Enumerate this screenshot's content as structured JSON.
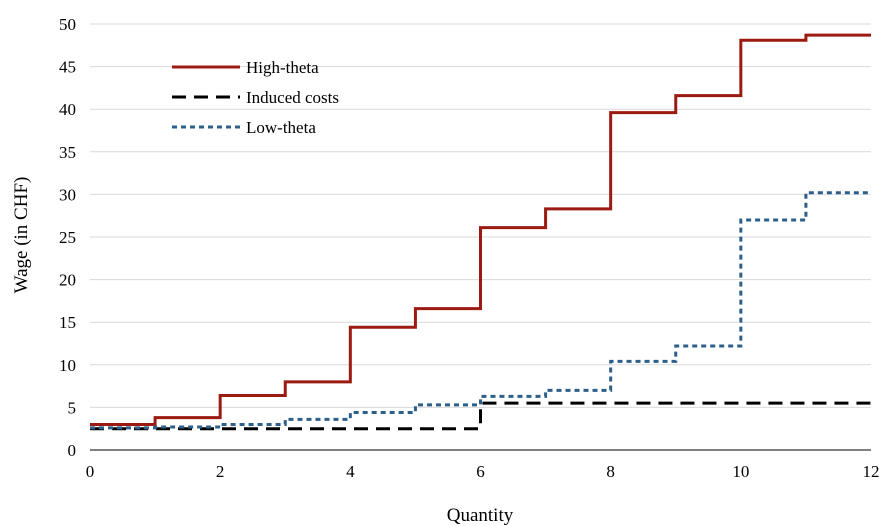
{
  "chart_data": {
    "type": "line",
    "step": true,
    "title": "",
    "xlabel": "Quantity",
    "ylabel": "Wage (in CHF)",
    "xlim": [
      0,
      12
    ],
    "ylim": [
      0,
      50
    ],
    "xticks": [
      0,
      2,
      4,
      6,
      8,
      10,
      12
    ],
    "yticks": [
      0,
      5,
      10,
      15,
      20,
      25,
      30,
      35,
      40,
      45,
      50
    ],
    "grid": {
      "horizontal": true,
      "vertical": false
    },
    "legend_position": "top-left",
    "series": [
      {
        "name": "High-theta",
        "color": "#9b1b12",
        "dash": "solid",
        "x": [
          0,
          1,
          2,
          3,
          4,
          5,
          6,
          7,
          8,
          9,
          10,
          11,
          12
        ],
        "values": [
          3.0,
          3.8,
          6.4,
          8.0,
          14.4,
          16.6,
          26.1,
          28.3,
          39.6,
          41.6,
          48.1,
          48.7,
          48.7
        ]
      },
      {
        "name": "Induced costs",
        "color": "#000000",
        "dash": "long-dash",
        "x": [
          0,
          1,
          2,
          3,
          4,
          5,
          6,
          7,
          8,
          9,
          10,
          11,
          12
        ],
        "values": [
          2.5,
          2.5,
          2.5,
          2.5,
          2.5,
          2.5,
          5.5,
          5.5,
          5.5,
          5.5,
          5.5,
          5.5,
          5.5
        ]
      },
      {
        "name": "Low-theta",
        "color": "#2d5f8a",
        "dash": "short-dash",
        "x": [
          0,
          1,
          2,
          3,
          4,
          5,
          6,
          7,
          8,
          9,
          10,
          11,
          12
        ],
        "values": [
          2.6,
          2.7,
          3.0,
          3.6,
          4.4,
          5.3,
          6.3,
          7.0,
          10.4,
          12.2,
          27.0,
          30.2,
          30.2
        ]
      }
    ]
  }
}
